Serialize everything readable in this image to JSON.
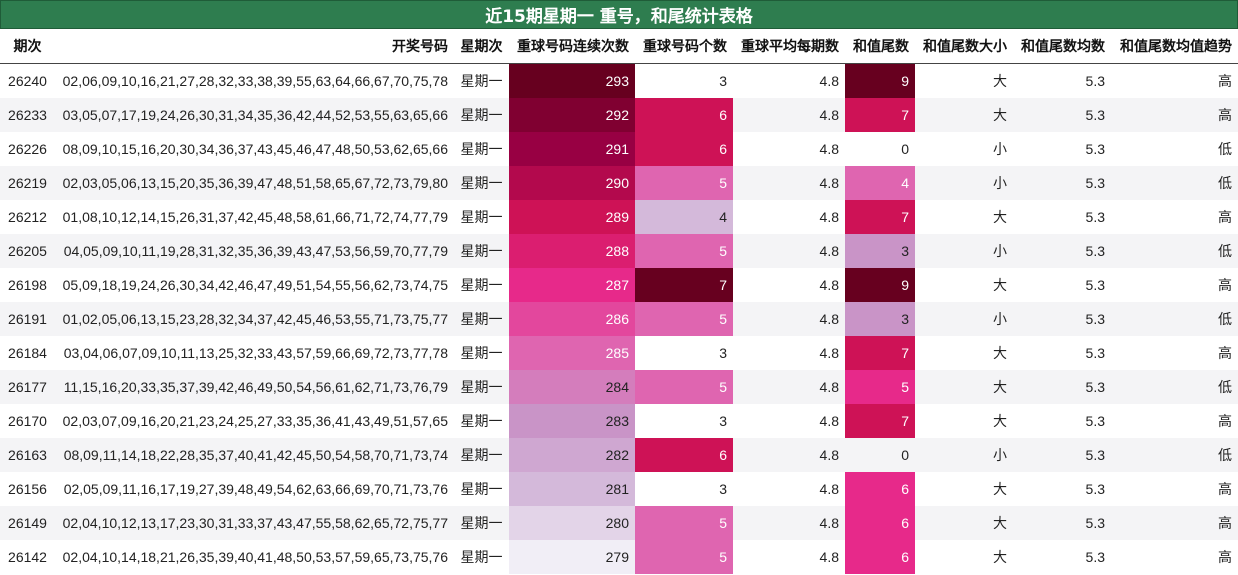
{
  "title": "近15期星期一 重号，和尾统计表格",
  "chart_data": {
    "type": "table",
    "title": "近15期星期一 重号，和尾统计表格",
    "columns": [
      "期次",
      "开奖号码",
      "星期次",
      "重球号码连续次数",
      "重球号码个数",
      "重球平均每期数",
      "和值尾数",
      "和值尾数大小",
      "和值尾数均数",
      "和值尾数均值趋势"
    ],
    "rows": [
      {
        "period": "26240",
        "numbers": "02,06,09,10,16,21,27,28,32,33,38,39,55,63,64,66,67,70,75,78",
        "weekday": "星期一",
        "consecutive": 293,
        "repeat_count": 3,
        "avg_per_period": 4.8,
        "tail": 9,
        "tail_size": "大",
        "tail_mean": 5.3,
        "trend": "高"
      },
      {
        "period": "26233",
        "numbers": "03,05,07,17,19,24,26,30,31,34,35,36,42,44,52,53,55,63,65,66",
        "weekday": "星期一",
        "consecutive": 292,
        "repeat_count": 6,
        "avg_per_period": 4.8,
        "tail": 7,
        "tail_size": "大",
        "tail_mean": 5.3,
        "trend": "高"
      },
      {
        "period": "26226",
        "numbers": "08,09,10,15,16,20,30,34,36,37,43,45,46,47,48,50,53,62,65,66",
        "weekday": "星期一",
        "consecutive": 291,
        "repeat_count": 6,
        "avg_per_period": 4.8,
        "tail": 0,
        "tail_size": "小",
        "tail_mean": 5.3,
        "trend": "低"
      },
      {
        "period": "26219",
        "numbers": "02,03,05,06,13,15,20,35,36,39,47,48,51,58,65,67,72,73,79,80",
        "weekday": "星期一",
        "consecutive": 290,
        "repeat_count": 5,
        "avg_per_period": 4.8,
        "tail": 4,
        "tail_size": "小",
        "tail_mean": 5.3,
        "trend": "低"
      },
      {
        "period": "26212",
        "numbers": "01,08,10,12,14,15,26,31,37,42,45,48,58,61,66,71,72,74,77,79",
        "weekday": "星期一",
        "consecutive": 289,
        "repeat_count": 4,
        "avg_per_period": 4.8,
        "tail": 7,
        "tail_size": "大",
        "tail_mean": 5.3,
        "trend": "高"
      },
      {
        "period": "26205",
        "numbers": "04,05,09,10,11,19,28,31,32,35,36,39,43,47,53,56,59,70,77,79",
        "weekday": "星期一",
        "consecutive": 288,
        "repeat_count": 5,
        "avg_per_period": 4.8,
        "tail": 3,
        "tail_size": "小",
        "tail_mean": 5.3,
        "trend": "低"
      },
      {
        "period": "26198",
        "numbers": "05,09,18,19,24,26,30,34,42,46,47,49,51,54,55,56,62,73,74,75",
        "weekday": "星期一",
        "consecutive": 287,
        "repeat_count": 7,
        "avg_per_period": 4.8,
        "tail": 9,
        "tail_size": "大",
        "tail_mean": 5.3,
        "trend": "高"
      },
      {
        "period": "26191",
        "numbers": "01,02,05,06,13,15,23,28,32,34,37,42,45,46,53,55,71,73,75,77",
        "weekday": "星期一",
        "consecutive": 286,
        "repeat_count": 5,
        "avg_per_period": 4.8,
        "tail": 3,
        "tail_size": "小",
        "tail_mean": 5.3,
        "trend": "低"
      },
      {
        "period": "26184",
        "numbers": "03,04,06,07,09,10,11,13,25,32,33,43,57,59,66,69,72,73,77,78",
        "weekday": "星期一",
        "consecutive": 285,
        "repeat_count": 3,
        "avg_per_period": 4.8,
        "tail": 7,
        "tail_size": "大",
        "tail_mean": 5.3,
        "trend": "高"
      },
      {
        "period": "26177",
        "numbers": "11,15,16,20,33,35,37,39,42,46,49,50,54,56,61,62,71,73,76,79",
        "weekday": "星期一",
        "consecutive": 284,
        "repeat_count": 5,
        "avg_per_period": 4.8,
        "tail": 5,
        "tail_size": "大",
        "tail_mean": 5.3,
        "trend": "低"
      },
      {
        "period": "26170",
        "numbers": "02,03,07,09,16,20,21,23,24,25,27,33,35,36,41,43,49,51,57,65",
        "weekday": "星期一",
        "consecutive": 283,
        "repeat_count": 3,
        "avg_per_period": 4.8,
        "tail": 7,
        "tail_size": "大",
        "tail_mean": 5.3,
        "trend": "高"
      },
      {
        "period": "26163",
        "numbers": "08,09,11,14,18,22,28,35,37,40,41,42,45,50,54,58,70,71,73,74",
        "weekday": "星期一",
        "consecutive": 282,
        "repeat_count": 6,
        "avg_per_period": 4.8,
        "tail": 0,
        "tail_size": "小",
        "tail_mean": 5.3,
        "trend": "低"
      },
      {
        "period": "26156",
        "numbers": "02,05,09,11,16,17,19,27,39,48,49,54,62,63,66,69,70,71,73,76",
        "weekday": "星期一",
        "consecutive": 281,
        "repeat_count": 3,
        "avg_per_period": 4.8,
        "tail": 6,
        "tail_size": "大",
        "tail_mean": 5.3,
        "trend": "高"
      },
      {
        "period": "26149",
        "numbers": "02,04,10,12,13,17,23,30,31,33,37,43,47,55,58,62,65,72,75,77",
        "weekday": "星期一",
        "consecutive": 280,
        "repeat_count": 5,
        "avg_per_period": 4.8,
        "tail": 6,
        "tail_size": "大",
        "tail_mean": 5.3,
        "trend": "高"
      },
      {
        "period": "26142",
        "numbers": "02,04,10,14,18,21,26,35,39,40,41,48,50,53,57,59,65,73,75,76",
        "weekday": "星期一",
        "consecutive": 279,
        "repeat_count": 5,
        "avg_per_period": 4.8,
        "tail": 6,
        "tail_size": "大",
        "tail_mean": 5.3,
        "trend": "高"
      }
    ],
    "colors": {
      "title_bg": "#2e7d4f",
      "consecutive_scale": [
        "#f1eef6",
        "#d4b9da",
        "#c994c7",
        "#df65b0",
        "#e7298a",
        "#ce1256",
        "#980043",
        "#67001f"
      ],
      "repeat_scale": {
        "3": "#ffffff",
        "4": "#d4b9da",
        "5": "#df65b0",
        "6": "#ce1256",
        "7": "#67001f"
      },
      "tail_scale": {
        "0": "#ffffff",
        "3": "#c994c7",
        "4": "#df65b0",
        "5": "#e7298a",
        "6": "#e7298a",
        "7": "#ce1256",
        "9": "#67001f"
      }
    }
  }
}
